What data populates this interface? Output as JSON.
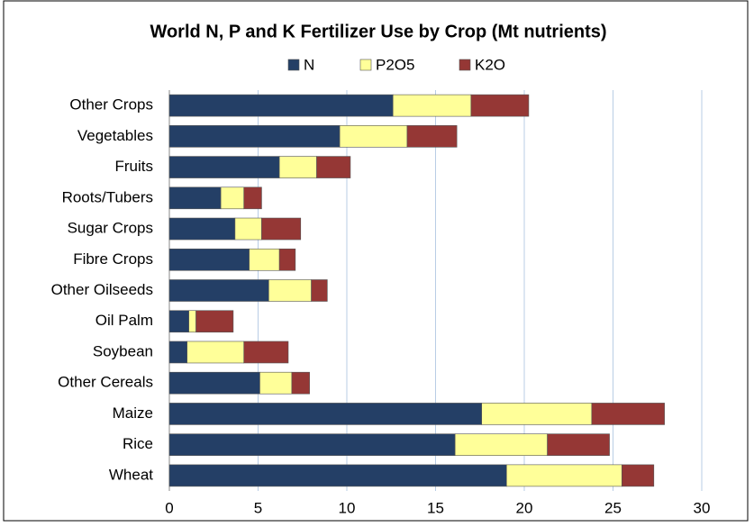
{
  "chart_data": {
    "type": "stacked_bar_horizontal",
    "title": "World N, P and K Fertilizer Use by Crop (Mt nutrients)",
    "categories": [
      "Other Crops",
      "Vegetables",
      "Fruits",
      "Roots/Tubers",
      "Sugar Crops",
      "Fibre Crops",
      "Other Oilseeds",
      "Oil Palm",
      "Soybean",
      "Other Cereals",
      "Maize",
      "Rice",
      "Wheat"
    ],
    "series": [
      {
        "name": "N",
        "color": "#243f66",
        "values": [
          12.6,
          9.6,
          6.2,
          2.9,
          3.7,
          4.5,
          5.6,
          1.1,
          1.0,
          5.1,
          17.6,
          16.1,
          19.0
        ]
      },
      {
        "name": "P2O5",
        "color": "#ffff99",
        "values": [
          4.4,
          3.8,
          2.1,
          1.3,
          1.5,
          1.7,
          2.4,
          0.4,
          3.2,
          1.8,
          6.2,
          5.2,
          6.5
        ]
      },
      {
        "name": "K2O",
        "color": "#953735",
        "values": [
          3.25,
          2.8,
          1.9,
          1.0,
          2.2,
          0.9,
          0.9,
          2.1,
          2.5,
          1.0,
          4.1,
          3.5,
          1.8
        ]
      }
    ],
    "xlim": [
      0,
      30
    ],
    "xticks": [
      0,
      5,
      10,
      15,
      20,
      25,
      30
    ],
    "grid": true,
    "legend": "top"
  }
}
